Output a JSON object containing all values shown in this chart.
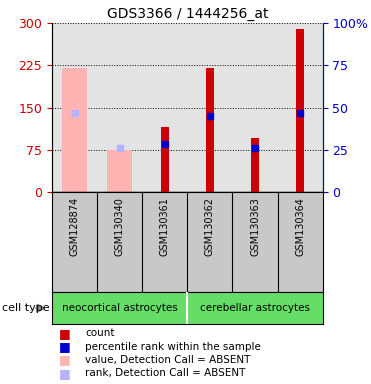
{
  "title": "GDS3366 / 1444256_at",
  "samples": [
    "GSM128874",
    "GSM130340",
    "GSM130361",
    "GSM130362",
    "GSM130363",
    "GSM130364"
  ],
  "absent_value": [
    220,
    75,
    null,
    null,
    null,
    null
  ],
  "absent_rank": [
    140,
    78,
    null,
    null,
    null,
    null
  ],
  "count": [
    null,
    null,
    115,
    220,
    95,
    290
  ],
  "percentile_rank": [
    null,
    null,
    85,
    135,
    78,
    140
  ],
  "ylim_left": [
    0,
    300
  ],
  "ylim_right": [
    0,
    100
  ],
  "yticks_left": [
    0,
    75,
    150,
    225,
    300
  ],
  "yticks_right": [
    0,
    25,
    50,
    75,
    100
  ],
  "absent_value_color": "#ffb3b3",
  "absent_rank_color": "#b3b3ff",
  "count_color": "#cc0000",
  "percentile_color": "#0000cc",
  "left_axis_color": "#cc0000",
  "right_axis_color": "#0000cc",
  "col_bg_color": "#c8c8c8",
  "cell_type_color": "#66dd66",
  "neocortical_label": "neocortical astrocytes",
  "cerebellar_label": "cerebellar astrocytes",
  "cell_type_text": "cell type",
  "legend_items": [
    {
      "color": "#cc0000",
      "label": "count"
    },
    {
      "color": "#0000cc",
      "label": "percentile rank within the sample"
    },
    {
      "color": "#ffb3b3",
      "label": "value, Detection Call = ABSENT"
    },
    {
      "color": "#b3b3ff",
      "label": "rank, Detection Call = ABSENT"
    }
  ]
}
